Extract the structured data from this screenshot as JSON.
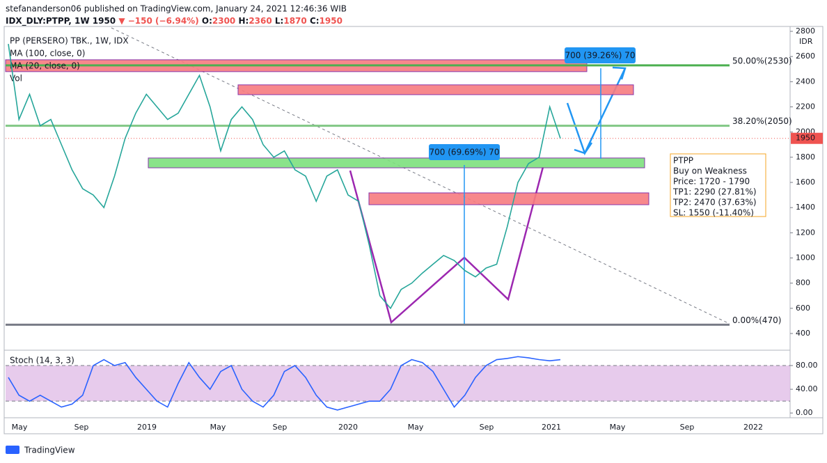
{
  "header": {
    "byline": "stefananderson06 published on TradingView.com, January 24, 2021 12:46:36 WIB",
    "symbol": "IDX_DLY:PTPP, 1W",
    "last": "1950",
    "change": "▼ −150 (−6.94%)",
    "ohlc": [
      {
        "key": "O:",
        "value": "2300"
      },
      {
        "key": "H:",
        "value": "2360"
      },
      {
        "key": "L:",
        "value": "1870"
      },
      {
        "key": "C:",
        "value": "1950"
      }
    ]
  },
  "chart_data": [
    {
      "type": "line",
      "title": "PP (PERSERO) TBK., 1W, IDX",
      "indicators": [
        "MA (100, close, 0)",
        "MA (20, close, 0)",
        "Vol"
      ],
      "unit": "IDR",
      "color": "#26a69a",
      "values": [
        2700,
        2100,
        2300,
        2050,
        2100,
        1900,
        1700,
        1550,
        1500,
        1400,
        1650,
        1950,
        2150,
        2300,
        2200,
        2100,
        2150,
        2300,
        2450,
        2200,
        1850,
        2100,
        2200,
        2100,
        1900,
        1800,
        1850,
        1700,
        1650,
        1450,
        1650,
        1700,
        1500,
        1450,
        1100,
        700,
        600,
        750,
        800,
        880,
        950,
        1020,
        980,
        900,
        850,
        920,
        950,
        1250,
        1600,
        1750,
        1800,
        2200,
        1950
      ],
      "ylim": [
        400,
        2800
      ],
      "yticks": [
        2800,
        2600,
        2400,
        2200,
        2000,
        1800,
        1600,
        1400,
        1200,
        1000,
        800,
        600,
        400
      ],
      "last_price": 1950,
      "xtick_labels": [
        "May",
        "Sep",
        "2019",
        "May",
        "Sep",
        "2020",
        "May",
        "Sep",
        "2021",
        "May",
        "Sep",
        "2022"
      ],
      "fib_levels": [
        {
          "value": 2530,
          "label": "50.00%(2530)",
          "color": "#4caf50"
        },
        {
          "value": 2050,
          "label": "38.20%(2050)",
          "color": "#81c784"
        },
        {
          "value": 470,
          "label": "0.00%(470)",
          "color": "#787b86"
        }
      ],
      "zones": [
        {
          "range": [
            2480,
            2574
          ],
          "color": "#f77c80"
        },
        {
          "range": [
            2297,
            2375
          ],
          "color": "#f77c80"
        },
        {
          "range": [
            1716,
            1794
          ],
          "color": "#7ee07e"
        },
        {
          "range": [
            1423,
            1517
          ],
          "color": "#f77c80"
        }
      ],
      "annotations": [
        "700 (39.26%) 70",
        "700 (69.69%) 70"
      ],
      "note": [
        "PTPP",
        "Buy on Weakness",
        "Price: 1720 - 1790",
        "TP1: 2290 (27.81%)",
        "TP2: 2470 (37.63%)",
        "SL: 1550 (-11.40%)"
      ]
    },
    {
      "type": "line",
      "title": "Stoch (14, 3, 3)",
      "color": "#2962ff",
      "values": [
        60,
        30,
        20,
        30,
        20,
        10,
        15,
        30,
        80,
        90,
        80,
        85,
        60,
        40,
        20,
        10,
        50,
        85,
        60,
        40,
        70,
        80,
        40,
        20,
        10,
        30,
        70,
        80,
        60,
        30,
        10,
        5,
        10,
        15,
        20,
        20,
        40,
        80,
        90,
        85,
        70,
        40,
        10,
        30,
        60,
        80,
        90,
        92,
        95,
        93,
        90,
        88,
        90
      ],
      "ylim": [
        -8,
        100
      ],
      "yticks": [
        {
          "value": 80,
          "label": "80.00"
        },
        {
          "value": 40,
          "label": "40.00"
        },
        {
          "value": 0,
          "label": "0.00"
        }
      ],
      "bands": [
        20,
        80
      ]
    }
  ],
  "footer": "TradingView"
}
